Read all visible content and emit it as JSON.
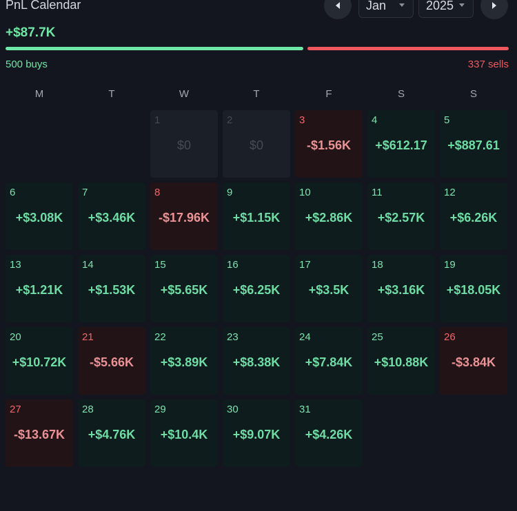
{
  "header": {
    "title": "PnL Calendar",
    "month": "Jan",
    "year": "2025"
  },
  "summary": {
    "total": "+$87.7K",
    "buys": "500 buys",
    "sells": "337 sells",
    "buy_ratio": 0.597
  },
  "colors": {
    "positive": "#6ee7a7",
    "negative": "#f0585d",
    "background": "#13161e"
  },
  "weekdays": [
    "M",
    "T",
    "W",
    "T",
    "F",
    "S",
    "S"
  ],
  "days": [
    {
      "day": "1",
      "value": "$0",
      "kind": "empty"
    },
    {
      "day": "2",
      "value": "$0",
      "kind": "empty"
    },
    {
      "day": "3",
      "value": "-$1.56K",
      "kind": "neg"
    },
    {
      "day": "4",
      "value": "+$612.17",
      "kind": "pos"
    },
    {
      "day": "5",
      "value": "+$887.61",
      "kind": "pos"
    },
    {
      "day": "6",
      "value": "+$3.08K",
      "kind": "pos"
    },
    {
      "day": "7",
      "value": "+$3.46K",
      "kind": "pos"
    },
    {
      "day": "8",
      "value": "-$17.96K",
      "kind": "neg"
    },
    {
      "day": "9",
      "value": "+$1.15K",
      "kind": "pos"
    },
    {
      "day": "10",
      "value": "+$2.86K",
      "kind": "pos"
    },
    {
      "day": "11",
      "value": "+$2.57K",
      "kind": "pos"
    },
    {
      "day": "12",
      "value": "+$6.26K",
      "kind": "pos"
    },
    {
      "day": "13",
      "value": "+$1.21K",
      "kind": "pos"
    },
    {
      "day": "14",
      "value": "+$1.53K",
      "kind": "pos"
    },
    {
      "day": "15",
      "value": "+$5.65K",
      "kind": "pos"
    },
    {
      "day": "16",
      "value": "+$6.25K",
      "kind": "pos"
    },
    {
      "day": "17",
      "value": "+$3.5K",
      "kind": "pos"
    },
    {
      "day": "18",
      "value": "+$3.16K",
      "kind": "pos"
    },
    {
      "day": "19",
      "value": "+$18.05K",
      "kind": "pos"
    },
    {
      "day": "20",
      "value": "+$10.72K",
      "kind": "pos"
    },
    {
      "day": "21",
      "value": "-$5.66K",
      "kind": "neg"
    },
    {
      "day": "22",
      "value": "+$3.89K",
      "kind": "pos"
    },
    {
      "day": "23",
      "value": "+$8.38K",
      "kind": "pos"
    },
    {
      "day": "24",
      "value": "+$7.84K",
      "kind": "pos"
    },
    {
      "day": "25",
      "value": "+$10.88K",
      "kind": "pos"
    },
    {
      "day": "26",
      "value": "-$3.84K",
      "kind": "neg"
    },
    {
      "day": "27",
      "value": "-$13.67K",
      "kind": "neg"
    },
    {
      "day": "28",
      "value": "+$4.76K",
      "kind": "pos"
    },
    {
      "day": "29",
      "value": "+$10.4K",
      "kind": "pos"
    },
    {
      "day": "30",
      "value": "+$9.07K",
      "kind": "pos"
    },
    {
      "day": "31",
      "value": "+$4.26K",
      "kind": "pos"
    }
  ]
}
